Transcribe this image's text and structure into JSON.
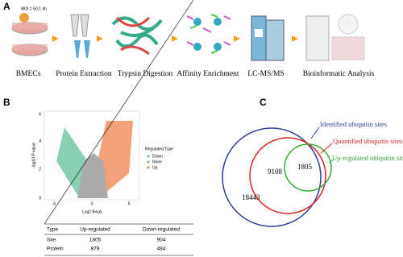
{
  "panels": {
    "a": {
      "label": "A",
      "note": "MOI = 50:1 4h",
      "steps": [
        "BMECs",
        "Protein Extraction",
        "Trypsin Digestion",
        "Affinity  Enrichment",
        "LC-MS/MS",
        "Bioinformatic Analysis"
      ]
    },
    "b": {
      "label": "B",
      "y_label": "-log10 P value",
      "x_label": "Log2 BvsA",
      "x_ticks": [
        "-5",
        "0",
        "5"
      ],
      "y_ticks": [
        "0",
        "2",
        "4",
        "6"
      ],
      "legend": {
        "title": "Regulated.Type",
        "items": [
          "Down",
          "None",
          "Up"
        ]
      },
      "table": {
        "header": [
          "Type",
          "Up-regulated",
          "Down-regulated"
        ],
        "rows": [
          [
            "Site",
            "1805",
            "904"
          ],
          [
            "Protein",
            "879",
            "484"
          ]
        ]
      }
    },
    "c": {
      "label": "C",
      "sets": [
        "Identified ubiquitin sites",
        "Quantified ubiquitin sites",
        "Up-regulated ubiquitin sites"
      ],
      "counts": [
        "18443",
        "9108",
        "1805"
      ]
    }
  }
}
